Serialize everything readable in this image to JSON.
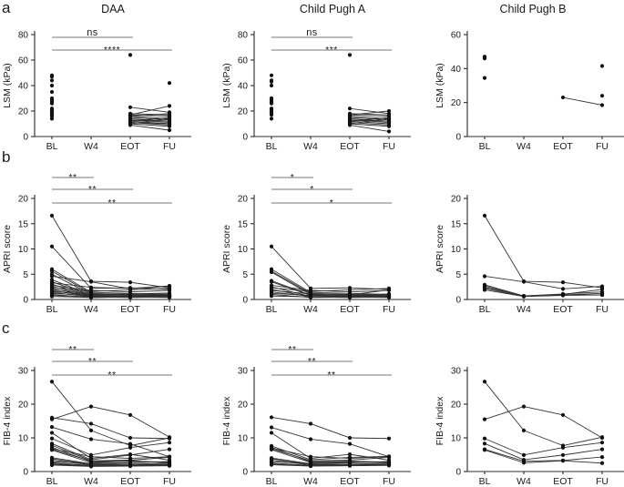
{
  "figure": {
    "row_labels": [
      "a",
      "b",
      "c"
    ],
    "col_titles": [
      "DAA",
      "Child Pugh A",
      "Child Pugh B"
    ]
  },
  "colors": {
    "line": "#333333",
    "point": "#111111",
    "axis": "#2b2b2b",
    "sig_bar": "#929292",
    "text": "#1a1a1a"
  },
  "chart_data": [
    {
      "id": "a-daa",
      "type": "line",
      "title": "DAA",
      "ylabel": "LSM (kPa)",
      "ylim": [
        0,
        80
      ],
      "yticks": [
        0,
        20,
        40,
        60,
        80
      ],
      "x_categories": [
        "BL",
        "W4",
        "EOT",
        "FU"
      ],
      "significance": [
        {
          "label": "ns",
          "from": 0,
          "to": 2
        },
        {
          "label": "****",
          "from": 0,
          "to": 3
        }
      ],
      "series": [
        [
          48,
          null,
          23,
          19
        ],
        [
          47,
          null,
          16,
          14
        ],
        [
          44,
          null,
          18,
          17
        ],
        [
          40,
          null,
          17,
          24
        ],
        [
          35,
          null,
          15,
          13
        ],
        [
          30,
          null,
          14,
          12
        ],
        [
          29,
          null,
          13,
          11
        ],
        [
          28,
          null,
          17,
          16
        ],
        [
          27,
          null,
          12,
          10
        ],
        [
          26,
          null,
          64,
          null
        ],
        [
          22,
          null,
          11,
          9
        ],
        [
          21,
          null,
          10,
          14
        ],
        [
          20,
          null,
          16,
          18
        ],
        [
          19,
          null,
          9,
          5
        ],
        [
          18,
          null,
          13,
          12
        ],
        [
          17,
          null,
          12,
          15
        ],
        [
          16,
          null,
          11,
          10
        ],
        [
          14,
          null,
          10,
          8
        ],
        [
          null,
          null,
          null,
          42
        ]
      ]
    },
    {
      "id": "a-cpa",
      "type": "line",
      "title": "Child Pugh A",
      "ylabel": "LSM (kPa)",
      "ylim": [
        0,
        80
      ],
      "yticks": [
        0,
        20,
        40,
        60,
        80
      ],
      "x_categories": [
        "BL",
        "W4",
        "EOT",
        "FU"
      ],
      "significance": [
        {
          "label": "ns",
          "from": 0,
          "to": 2
        },
        {
          "label": "***",
          "from": 0,
          "to": 3
        }
      ],
      "series": [
        [
          48,
          null,
          16,
          14
        ],
        [
          44,
          null,
          18,
          17
        ],
        [
          43,
          null,
          15,
          13
        ],
        [
          40,
          null,
          17,
          20
        ],
        [
          30,
          null,
          14,
          12
        ],
        [
          29,
          null,
          13,
          11
        ],
        [
          28,
          null,
          17,
          16
        ],
        [
          27,
          null,
          12,
          10
        ],
        [
          26,
          null,
          64,
          null
        ],
        [
          22,
          null,
          22,
          18
        ],
        [
          21,
          null,
          11,
          9
        ],
        [
          20,
          null,
          10,
          14
        ],
        [
          19,
          null,
          9,
          4
        ],
        [
          18,
          null,
          13,
          12
        ],
        [
          17,
          null,
          12,
          15
        ],
        [
          14,
          null,
          10,
          8
        ]
      ]
    },
    {
      "id": "a-cpb",
      "type": "line",
      "title": "Child Pugh B",
      "ylabel": "LSM (kPa)",
      "ylim": [
        0,
        60
      ],
      "yticks": [
        0,
        20,
        40,
        60
      ],
      "x_categories": [
        "BL",
        "W4",
        "EOT",
        "FU"
      ],
      "significance": [],
      "series": [
        [
          47,
          null,
          null,
          24
        ],
        [
          46,
          null,
          null,
          null
        ],
        [
          34.5,
          null,
          23,
          18.5
        ],
        [
          null,
          null,
          null,
          41.5
        ]
      ]
    },
    {
      "id": "b-daa",
      "type": "line",
      "title": "DAA",
      "ylabel": "APRI score",
      "ylim": [
        0,
        20
      ],
      "yticks": [
        0,
        5,
        10,
        15,
        20
      ],
      "x_categories": [
        "BL",
        "W4",
        "EOT",
        "FU"
      ],
      "significance": [
        {
          "label": "**",
          "from": 0,
          "to": 1
        },
        {
          "label": "**",
          "from": 0,
          "to": 2
        },
        {
          "label": "**",
          "from": 0,
          "to": 3
        }
      ],
      "series": [
        [
          16.6,
          3.6,
          3.4,
          2.3
        ],
        [
          10.5,
          2.2,
          2.3,
          2.0
        ],
        [
          6.0,
          1.4,
          1.2,
          1.0
        ],
        [
          5.6,
          1.2,
          1.0,
          0.9
        ],
        [
          5.0,
          1.0,
          0.9,
          0.8
        ],
        [
          4.6,
          3.5,
          2.1,
          2.6
        ],
        [
          3.9,
          0.9,
          0.8,
          0.7
        ],
        [
          3.5,
          0.8,
          0.9,
          1.1
        ],
        [
          3.3,
          2.4,
          2.2,
          2.7
        ],
        [
          3.0,
          0.7,
          0.6,
          0.6
        ],
        [
          2.8,
          1.8,
          1.5,
          1.8
        ],
        [
          2.6,
          0.6,
          0.7,
          0.5
        ],
        [
          2.4,
          1.6,
          1.9,
          2.2
        ],
        [
          2.2,
          0.5,
          0.6,
          0.8
        ],
        [
          2.0,
          1.1,
          0.8,
          0.6
        ],
        [
          1.8,
          0.6,
          0.5,
          0.5
        ],
        [
          1.6,
          0.9,
          1.1,
          1.3
        ],
        [
          1.4,
          0.5,
          0.6,
          0.7
        ],
        [
          1.2,
          0.8,
          0.9,
          0.8
        ],
        [
          1.0,
          0.4,
          0.5,
          0.4
        ],
        [
          0.8,
          0.5,
          0.4,
          0.5
        ],
        [
          0.6,
          0.4,
          0.5,
          0.6
        ]
      ]
    },
    {
      "id": "b-cpa",
      "type": "line",
      "title": "Child Pugh A",
      "ylabel": "APRI score",
      "ylim": [
        0,
        20
      ],
      "yticks": [
        0,
        5,
        10,
        15,
        20
      ],
      "x_categories": [
        "BL",
        "W4",
        "EOT",
        "FU"
      ],
      "significance": [
        {
          "label": "*",
          "from": 0,
          "to": 1
        },
        {
          "label": "*",
          "from": 0,
          "to": 2
        },
        {
          "label": "*",
          "from": 0,
          "to": 3
        }
      ],
      "series": [
        [
          10.5,
          2.2,
          2.3,
          2.0
        ],
        [
          6.0,
          1.4,
          1.2,
          1.0
        ],
        [
          5.6,
          1.2,
          1.0,
          0.9
        ],
        [
          5.4,
          1.0,
          0.9,
          0.8
        ],
        [
          3.7,
          0.9,
          0.8,
          0.7
        ],
        [
          3.5,
          0.8,
          0.9,
          1.1
        ],
        [
          2.8,
          1.8,
          1.5,
          1.8
        ],
        [
          2.5,
          0.6,
          0.7,
          0.5
        ],
        [
          2.3,
          1.6,
          1.9,
          2.2
        ],
        [
          2.0,
          0.5,
          0.6,
          0.8
        ],
        [
          1.8,
          1.1,
          0.8,
          0.6
        ],
        [
          1.5,
          0.6,
          0.5,
          0.5
        ],
        [
          1.2,
          0.8,
          0.9,
          1.9
        ],
        [
          1.0,
          0.4,
          0.5,
          0.4
        ],
        [
          0.7,
          0.5,
          0.4,
          0.5
        ]
      ]
    },
    {
      "id": "b-cpb",
      "type": "line",
      "title": "Child Pugh B",
      "ylabel": "APRI score",
      "ylim": [
        0,
        20
      ],
      "yticks": [
        0,
        5,
        10,
        15,
        20
      ],
      "x_categories": [
        "BL",
        "W4",
        "EOT",
        "FU"
      ],
      "significance": [],
      "series": [
        [
          16.6,
          3.6,
          3.4,
          2.3
        ],
        [
          4.6,
          3.5,
          2.1,
          2.6
        ],
        [
          2.9,
          0.7,
          1.1,
          1.5
        ],
        [
          2.7,
          0.6,
          0.9,
          1.2
        ],
        [
          2.4,
          0.7,
          0.9,
          0.9
        ],
        [
          2.2,
          0.6,
          1.0,
          2.0
        ],
        [
          1.9,
          0.6,
          0.8,
          0.9
        ]
      ]
    },
    {
      "id": "c-daa",
      "type": "line",
      "title": "DAA",
      "ylabel": "FIB-4 index",
      "ylim": [
        0,
        30
      ],
      "yticks": [
        0,
        10,
        20,
        30
      ],
      "x_categories": [
        "BL",
        "W4",
        "EOT",
        "FU"
      ],
      "significance": [
        {
          "label": "**",
          "from": 0,
          "to": 1
        },
        {
          "label": "**",
          "from": 0,
          "to": 2
        },
        {
          "label": "**",
          "from": 0,
          "to": 3
        }
      ],
      "series": [
        [
          26.7,
          12.2,
          7.7,
          10.0
        ],
        [
          15.5,
          19.3,
          16.8,
          10.2
        ],
        [
          16.0,
          14.2,
          10.0,
          9.8
        ],
        [
          13.2,
          9.6,
          8.2,
          4.4
        ],
        [
          11.5,
          3.9,
          5.1,
          3.4
        ],
        [
          9.8,
          4.9,
          7.1,
          8.6
        ],
        [
          8.3,
          3.5,
          4.9,
          6.6
        ],
        [
          7.8,
          3.2,
          3.4,
          4.2
        ],
        [
          7.2,
          2.9,
          3.1,
          2.8
        ],
        [
          6.8,
          4.4,
          3.9,
          4.4
        ],
        [
          6.6,
          3.1,
          3.3,
          4.3
        ],
        [
          6.4,
          2.6,
          3.2,
          2.5
        ],
        [
          4.1,
          2.3,
          2.6,
          3.0
        ],
        [
          3.8,
          2.1,
          2.2,
          2.4
        ],
        [
          3.4,
          1.9,
          2.0,
          2.1
        ],
        [
          2.9,
          2.4,
          2.7,
          2.9
        ],
        [
          2.6,
          1.8,
          1.9,
          2.0
        ],
        [
          2.3,
          1.7,
          1.8,
          1.9
        ],
        [
          2.1,
          1.6,
          1.7,
          1.8
        ],
        [
          1.9,
          1.5,
          1.6,
          1.7
        ]
      ]
    },
    {
      "id": "c-cpa",
      "type": "line",
      "title": "Child Pugh A",
      "ylabel": "FIB-4 index",
      "ylim": [
        0,
        30
      ],
      "yticks": [
        0,
        10,
        20,
        30
      ],
      "x_categories": [
        "BL",
        "W4",
        "EOT",
        "FU"
      ],
      "significance": [
        {
          "label": "**",
          "from": 0,
          "to": 1
        },
        {
          "label": "**",
          "from": 0,
          "to": 2
        },
        {
          "label": "**",
          "from": 0,
          "to": 3
        }
      ],
      "series": [
        [
          16.1,
          14.2,
          10.0,
          9.8
        ],
        [
          13.1,
          9.6,
          8.2,
          4.4
        ],
        [
          11.5,
          3.9,
          5.1,
          3.4
        ],
        [
          7.6,
          3.5,
          4.2,
          4.5
        ],
        [
          7.2,
          2.9,
          3.1,
          2.8
        ],
        [
          7.0,
          4.4,
          3.9,
          4.4
        ],
        [
          6.8,
          3.2,
          3.4,
          4.2
        ],
        [
          6.5,
          2.7,
          2.9,
          2.6
        ],
        [
          4.0,
          2.3,
          2.6,
          3.0
        ],
        [
          3.8,
          2.1,
          2.2,
          2.4
        ],
        [
          3.4,
          1.9,
          2.0,
          2.1
        ],
        [
          2.9,
          2.4,
          2.7,
          2.9
        ],
        [
          2.5,
          1.8,
          1.9,
          2.0
        ],
        [
          2.2,
          1.7,
          1.8,
          1.9
        ],
        [
          2.0,
          1.6,
          1.7,
          1.8
        ]
      ]
    },
    {
      "id": "c-cpb",
      "type": "line",
      "title": "Child Pugh B",
      "ylabel": "FIB-4 index",
      "ylim": [
        0,
        30
      ],
      "yticks": [
        0,
        10,
        20,
        30
      ],
      "x_categories": [
        "BL",
        "W4",
        "EOT",
        "FU"
      ],
      "significance": [],
      "series": [
        [
          26.7,
          12.2,
          7.7,
          10.2
        ],
        [
          15.5,
          19.3,
          16.8,
          10.0
        ],
        [
          9.8,
          4.9,
          7.1,
          8.6
        ],
        [
          8.3,
          3.5,
          4.9,
          6.6
        ],
        [
          6.6,
          3.1,
          3.3,
          4.3
        ],
        [
          6.4,
          2.6,
          3.2,
          2.5
        ]
      ]
    }
  ]
}
